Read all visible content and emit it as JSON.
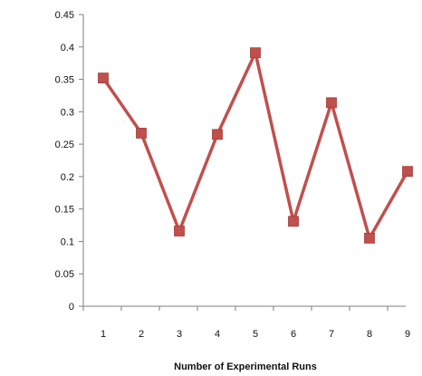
{
  "chart_data": {
    "type": "line",
    "title": "",
    "xlabel": "Number of Experimental Runs",
    "ylabel": "",
    "categories": [
      "1",
      "2",
      "3",
      "4",
      "5",
      "6",
      "7",
      "8",
      "9"
    ],
    "series": [
      {
        "values": [
          0.352,
          0.267,
          0.116,
          0.265,
          0.391,
          0.131,
          0.314,
          0.105,
          0.208
        ],
        "color": "#c0504d",
        "marker": "square"
      }
    ],
    "ylim": [
      0,
      0.45
    ],
    "y_ticks": [
      "0",
      "0.05",
      "0.1",
      "0.15",
      "0.2",
      "0.25",
      "0.3",
      "0.35",
      "0.4",
      "0.45"
    ],
    "grid": false,
    "legend": "none"
  }
}
